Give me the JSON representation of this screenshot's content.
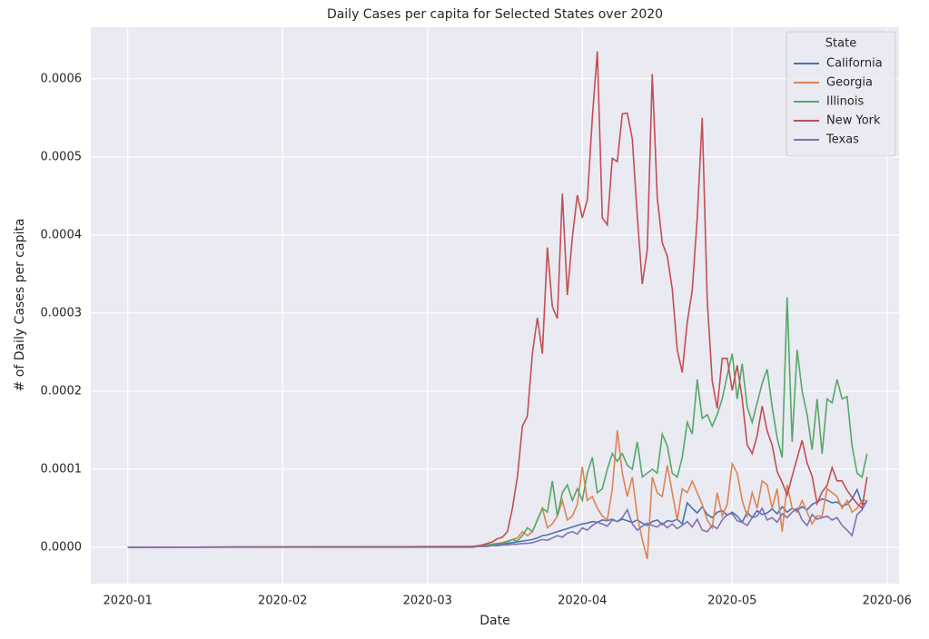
{
  "chart_data": {
    "type": "line",
    "title": "Daily Cases per capita for Selected States over 2020",
    "x_label": "Date",
    "y_label": "# of Daily Cases per capita",
    "x": [
      0,
      69,
      70,
      71,
      72,
      73,
      74,
      75,
      76,
      77,
      78,
      79,
      80,
      81,
      82,
      83,
      84,
      85,
      86,
      87,
      88,
      89,
      90,
      91,
      92,
      93,
      94,
      95,
      96,
      97,
      98,
      99,
      100,
      101,
      102,
      103,
      104,
      105,
      106,
      107,
      108,
      109,
      110,
      111,
      112,
      113,
      114,
      115,
      116,
      117,
      118,
      119,
      120,
      121,
      122,
      123,
      124,
      125,
      126,
      127,
      128,
      129,
      130,
      131,
      132,
      133,
      134,
      135,
      136,
      137,
      138,
      139,
      140,
      141,
      142,
      143,
      144,
      145,
      146,
      147,
      148
    ],
    "xlim": [
      -7.4,
      154.4
    ],
    "xticks": [
      {
        "value": 0,
        "label": "2020-01"
      },
      {
        "value": 31,
        "label": "2020-02"
      },
      {
        "value": 60,
        "label": "2020-03"
      },
      {
        "value": 91,
        "label": "2020-04"
      },
      {
        "value": 121,
        "label": "2020-05"
      },
      {
        "value": 152,
        "label": "2020-06"
      }
    ],
    "ylim": [
      -4.65e-05,
      0.000666
    ],
    "yticks": [
      {
        "value": 0,
        "label": "0.0000"
      },
      0.0001,
      0.0002,
      0.0003,
      0.0004,
      0.0005,
      0.0006
    ],
    "grid": true,
    "legend_title": "State",
    "legend_position": "upper right",
    "series": [
      {
        "name": "California",
        "color": "#4c72b0",
        "values": [
          0,
          1e-06,
          1e-06,
          2e-06,
          2e-06,
          3e-06,
          3e-06,
          4e-06,
          5e-06,
          6e-06,
          7e-06,
          8e-06,
          9e-06,
          1e-05,
          1.2e-05,
          1.5e-05,
          1.6e-05,
          1.8e-05,
          2e-05,
          2.2e-05,
          2.4e-05,
          2.6e-05,
          2.8e-05,
          3e-05,
          3.1e-05,
          3.3e-05,
          3.2e-05,
          3.5e-05,
          3.4e-05,
          3.6e-05,
          3.3e-05,
          3.6e-05,
          3.4e-05,
          3.2e-05,
          3.5e-05,
          3.1e-05,
          2.8e-05,
          3.3e-05,
          3.5e-05,
          2.9e-05,
          3.4e-05,
          3.3e-05,
          3.6e-05,
          3e-05,
          5.7e-05,
          5e-05,
          4.4e-05,
          5.2e-05,
          4.2e-05,
          3.8e-05,
          4.5e-05,
          4.7e-05,
          4.1e-05,
          4.5e-05,
          4e-05,
          3.2e-05,
          4.5e-05,
          3.8e-05,
          4.7e-05,
          4.2e-05,
          4.4e-05,
          4.9e-05,
          4.3e-05,
          5.2e-05,
          4.5e-05,
          5e-05,
          4.7e-05,
          5.2e-05,
          4.8e-05,
          5.5e-05,
          5.8e-05,
          6.2e-05,
          6e-05,
          5.7e-05,
          5.8e-05,
          5.3e-05,
          5.5e-05,
          6.2e-05,
          7.4e-05,
          5.5e-05,
          5.8e-05
        ]
      },
      {
        "name": "Georgia",
        "color": "#dd8452",
        "values": [
          0,
          1e-06,
          2e-06,
          2e-06,
          3e-06,
          4e-06,
          5e-06,
          6e-06,
          8e-06,
          1e-05,
          1.2e-05,
          2e-05,
          1.5e-05,
          2e-05,
          3.5e-05,
          5e-05,
          2.5e-05,
          3e-05,
          4e-05,
          6e-05,
          3.5e-05,
          4e-05,
          5.5e-05,
          0.000103,
          6e-05,
          6.5e-05,
          5e-05,
          4e-05,
          3.5e-05,
          7.5e-05,
          0.00015,
          9.5e-05,
          6.5e-05,
          9e-05,
          4e-05,
          1e-05,
          -1.5e-05,
          9e-05,
          7e-05,
          6.5e-05,
          0.000105,
          7e-05,
          3.5e-05,
          7.5e-05,
          7e-05,
          8.5e-05,
          7e-05,
          5.5e-05,
          3.5e-05,
          2.5e-05,
          7e-05,
          4e-05,
          5.5e-05,
          0.000107,
          9.5e-05,
          6e-05,
          4e-05,
          7e-05,
          5e-05,
          8.5e-05,
          8e-05,
          5e-05,
          7.5e-05,
          2e-05,
          8e-05,
          5e-05,
          4.5e-05,
          6e-05,
          4.5e-05,
          3e-05,
          4e-05,
          4e-05,
          7.5e-05,
          7e-05,
          6.5e-05,
          5e-05,
          6e-05,
          4.5e-05,
          5e-05,
          6e-05,
          6e-05
        ]
      },
      {
        "name": "Illinois",
        "color": "#55a868",
        "values": [
          0,
          1e-06,
          1e-06,
          2e-06,
          3e-06,
          4e-06,
          5e-06,
          5e-06,
          7e-06,
          1e-05,
          8e-06,
          1.5e-05,
          2.5e-05,
          2e-05,
          3.5e-05,
          5e-05,
          4.5e-05,
          8.5e-05,
          4e-05,
          7e-05,
          8e-05,
          6e-05,
          7.5e-05,
          6e-05,
          9.5e-05,
          0.000115,
          7e-05,
          7.5e-05,
          0.0001,
          0.00012,
          0.00011,
          0.00012,
          0.000105,
          0.0001,
          0.000135,
          9e-05,
          9.5e-05,
          0.0001,
          9.5e-05,
          0.000145,
          0.00013,
          9.5e-05,
          9e-05,
          0.000115,
          0.00016,
          0.000145,
          0.000215,
          0.000165,
          0.00017,
          0.000155,
          0.00017,
          0.00019,
          0.00022,
          0.000248,
          0.00019,
          0.000235,
          0.00018,
          0.00016,
          0.000185,
          0.00021,
          0.000228,
          0.00018,
          0.00014,
          0.000115,
          0.00032,
          0.000135,
          0.000253,
          0.0002,
          0.00017,
          0.000125,
          0.00019,
          0.00012,
          0.00019,
          0.000185,
          0.000215,
          0.00019,
          0.000193,
          0.00013,
          9.5e-05,
          9e-05,
          0.00012
        ]
      },
      {
        "name": "New York",
        "color": "#c44e52",
        "values": [
          0,
          1e-06,
          2e-06,
          3e-06,
          5e-06,
          7e-06,
          1.1e-05,
          1.3e-05,
          2e-05,
          5e-05,
          9e-05,
          0.000155,
          0.000168,
          0.000248,
          0.000294,
          0.000248,
          0.000384,
          0.000308,
          0.000293,
          0.000453,
          0.000323,
          0.000397,
          0.000451,
          0.000422,
          0.000445,
          0.00055,
          0.000635,
          0.000422,
          0.000413,
          0.000498,
          0.000494,
          0.000555,
          0.000556,
          0.000523,
          0.000424,
          0.000337,
          0.000381,
          0.000606,
          0.000448,
          0.00039,
          0.000373,
          0.000331,
          0.000253,
          0.000224,
          0.000288,
          0.000329,
          0.000422,
          0.00055,
          0.000317,
          0.000213,
          0.000178,
          0.000242,
          0.000242,
          0.000201,
          0.000233,
          0.00019,
          0.000131,
          0.00012,
          0.000143,
          0.000181,
          0.000149,
          0.000131,
          9.7e-05,
          8.3e-05,
          6.7e-05,
          9.1e-05,
          0.000114,
          0.000137,
          0.000108,
          9.1e-05,
          5.6e-05,
          7.1e-05,
          7.9e-05,
          0.000102,
          8.5e-05,
          8.5e-05,
          7.3e-05,
          6.4e-05,
          5.6e-05,
          5e-05,
          9e-05
        ]
      },
      {
        "name": "Texas",
        "color": "#8172b3",
        "values": [
          0,
          0,
          1e-06,
          1e-06,
          1e-06,
          2e-06,
          2e-06,
          3e-06,
          3e-06,
          4e-06,
          4e-06,
          5e-06,
          5e-06,
          6e-06,
          8e-06,
          1e-05,
          9e-06,
          1.2e-05,
          1.5e-05,
          1.3e-05,
          1.8e-05,
          2e-05,
          1.7e-05,
          2.5e-05,
          2.2e-05,
          2.8e-05,
          3.2e-05,
          3e-05,
          2.7e-05,
          3.5e-05,
          3.3e-05,
          3.8e-05,
          4.8e-05,
          3e-05,
          2.2e-05,
          2.7e-05,
          3.1e-05,
          2.8e-05,
          2.6e-05,
          3.1e-05,
          2.5e-05,
          3e-05,
          2.4e-05,
          2.8e-05,
          3.3e-05,
          2.6e-05,
          3.6e-05,
          2.2e-05,
          2e-05,
          2.8e-05,
          2.4e-05,
          3.5e-05,
          4.2e-05,
          4.3e-05,
          3.4e-05,
          3.2e-05,
          2.8e-05,
          3.8e-05,
          4e-05,
          5e-05,
          3.5e-05,
          3.8e-05,
          3.2e-05,
          4.3e-05,
          3.8e-05,
          4.5e-05,
          5e-05,
          3.5e-05,
          2.8e-05,
          4.2e-05,
          3.6e-05,
          3.8e-05,
          4e-05,
          3.5e-05,
          3.8e-05,
          2.8e-05,
          2.2e-05,
          1.5e-05,
          4.2e-05,
          4.8e-05,
          6e-05
        ]
      }
    ]
  }
}
